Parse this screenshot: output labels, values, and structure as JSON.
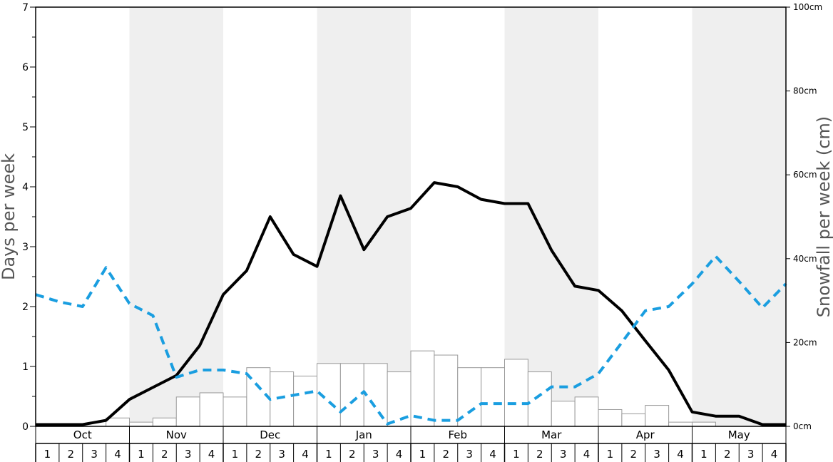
{
  "chart_data": {
    "type": "bar+line",
    "ylabel_left": "Days per week",
    "ylabel_right": "Snowfall per week (cm)",
    "ylim_left": [
      0,
      7
    ],
    "ylim_right": [
      0,
      100
    ],
    "left_ticks": [
      "0",
      "1",
      "2",
      "3",
      "4",
      "5",
      "6",
      "7"
    ],
    "right_ticks": [
      "0cm",
      "20cm",
      "40cm",
      "60cm",
      "80cm",
      "100cm"
    ],
    "months": [
      "Oct",
      "Nov",
      "Dec",
      "Jan",
      "Feb",
      "Mar",
      "Apr",
      "May"
    ],
    "weeks": [
      "1",
      "2",
      "3",
      "4"
    ],
    "shaded_months": [
      "Nov",
      "Jan",
      "Mar",
      "May"
    ],
    "colors": {
      "bars_fill": "#ffffff",
      "bars_stroke": "#999999",
      "solid_line": "#000000",
      "dashed_line": "#1a9ee0",
      "shade": "#efefef"
    },
    "series": [
      {
        "kind": "bar",
        "axis": "right",
        "unit": "cm",
        "values": [
          0,
          0,
          0,
          2,
          1,
          2,
          7,
          8,
          7,
          14,
          13,
          12,
          15,
          15,
          15,
          13,
          18,
          17,
          14,
          14,
          16,
          13,
          6,
          7,
          4,
          3,
          5,
          1,
          1,
          0,
          0,
          0
        ]
      },
      {
        "kind": "line",
        "style": "solid",
        "axis": "left",
        "values": [
          0.03,
          0.03,
          0.03,
          0.1,
          0.45,
          0.65,
          0.85,
          1.35,
          2.2,
          2.6,
          3.5,
          2.87,
          2.67,
          3.85,
          2.95,
          3.5,
          3.64,
          4.07,
          4.0,
          3.79,
          3.72,
          3.72,
          2.94,
          2.34,
          2.27,
          1.93,
          1.43,
          0.94,
          0.24,
          0.17,
          0.17,
          0.03,
          0.03
        ]
      },
      {
        "kind": "line",
        "style": "dashed",
        "axis": "left",
        "values": [
          2.2,
          2.08,
          2.0,
          2.65,
          2.05,
          1.85,
          0.82,
          0.94,
          0.94,
          0.88,
          0.45,
          0.52,
          0.59,
          0.24,
          0.58,
          0.04,
          0.18,
          0.1,
          0.1,
          0.38,
          0.38,
          0.38,
          0.66,
          0.66,
          0.88,
          1.4,
          1.93,
          2.0,
          2.38,
          2.84,
          2.42,
          1.98,
          2.38
        ]
      }
    ]
  }
}
